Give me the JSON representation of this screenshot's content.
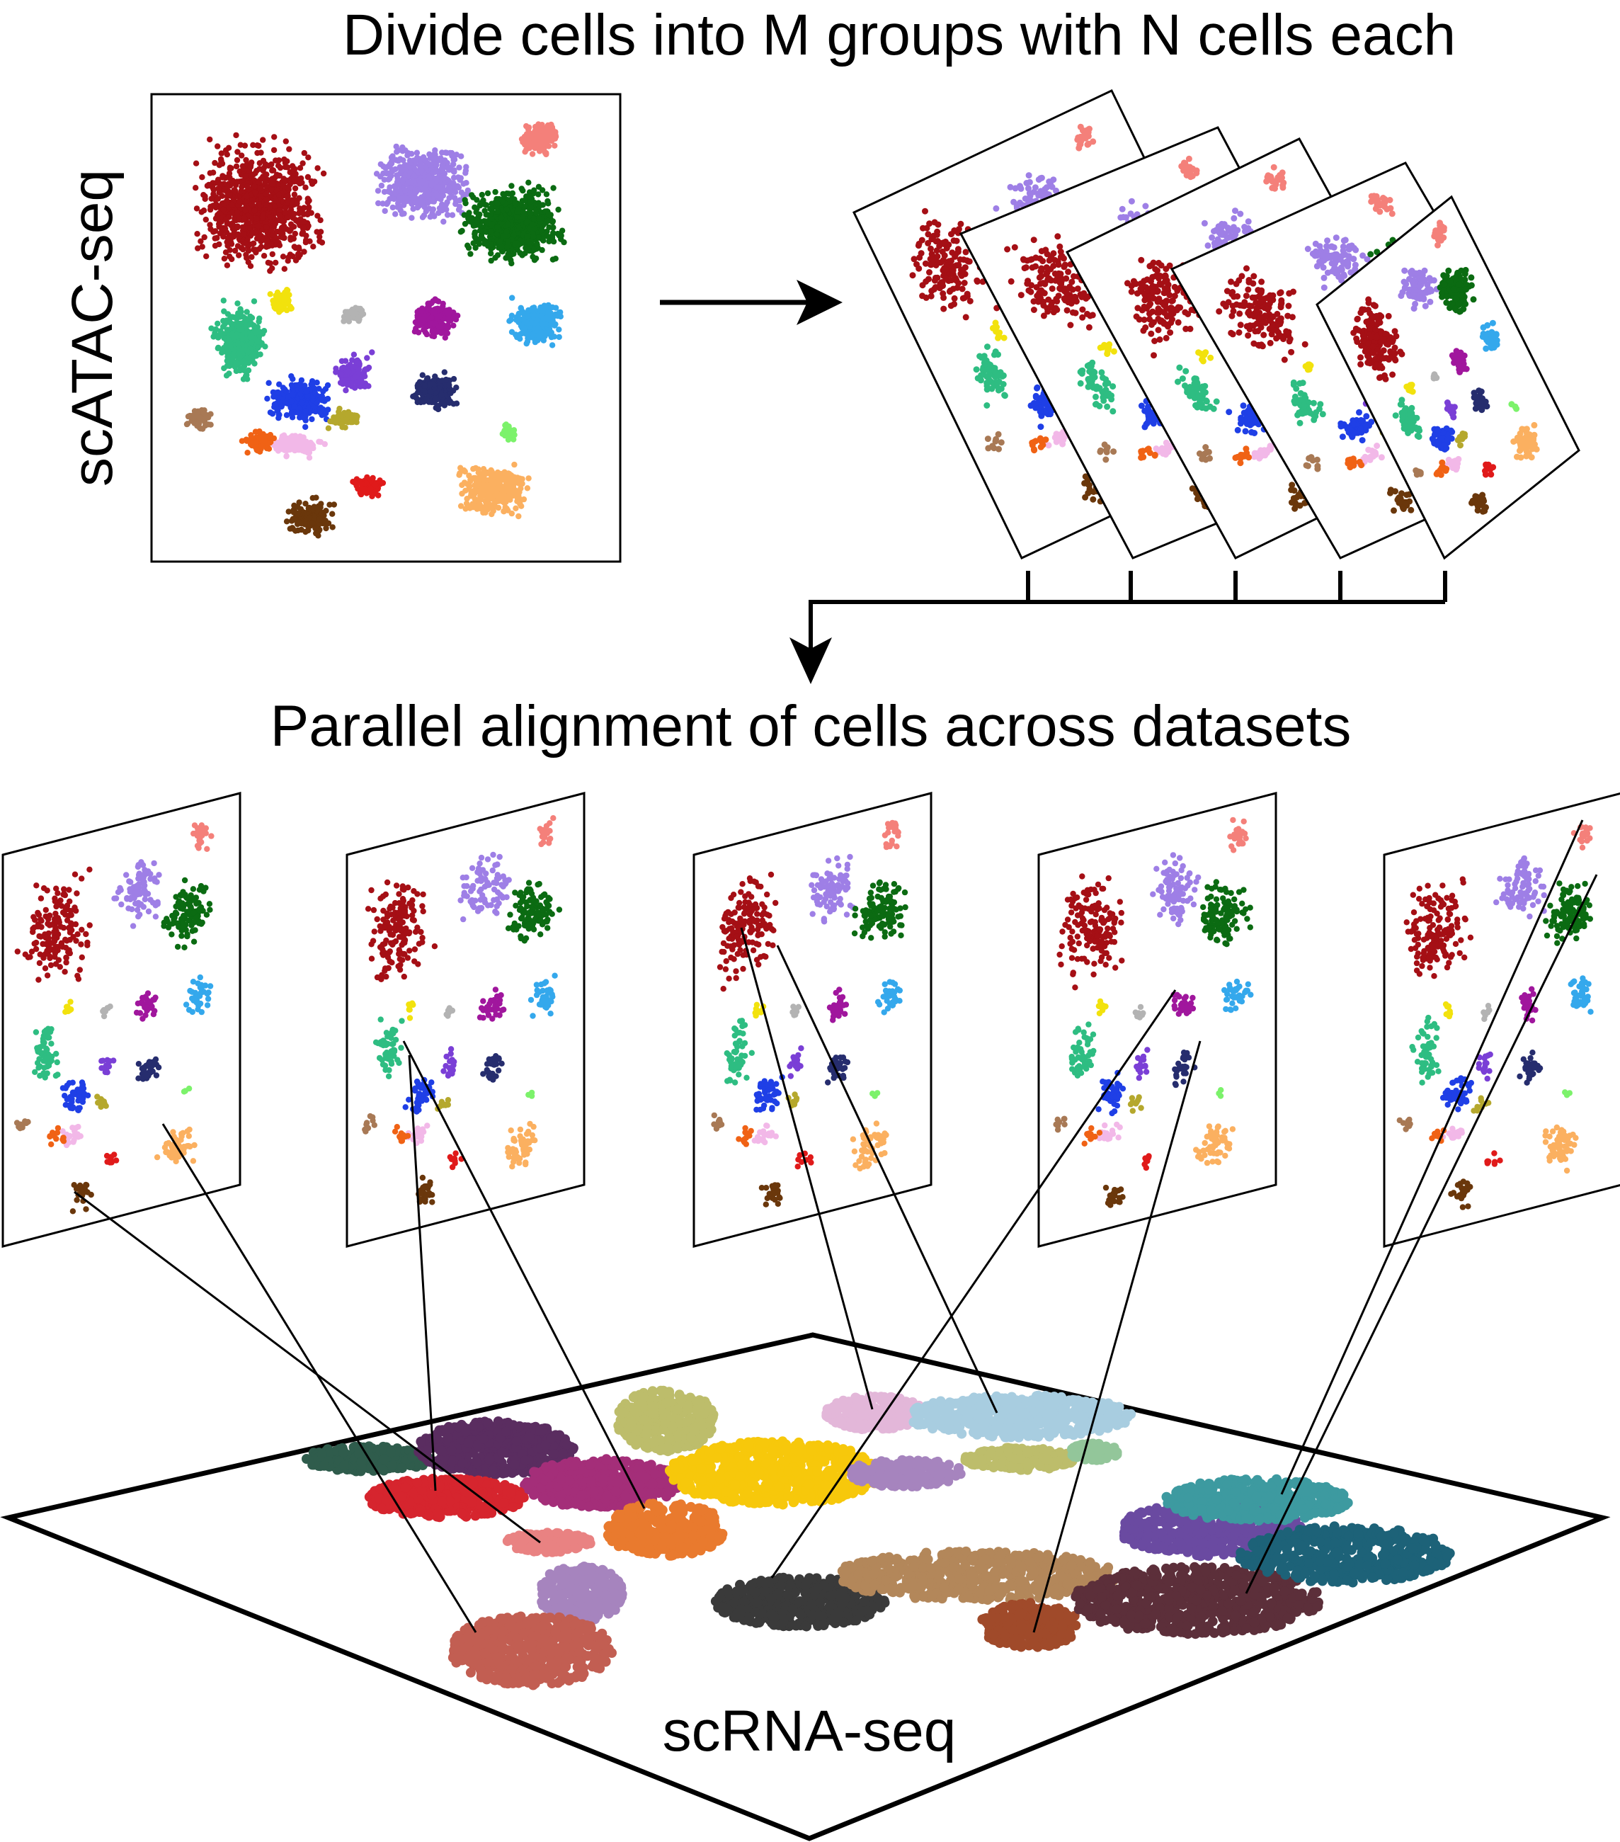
{
  "labels": {
    "top_title": "Divide cells into M groups with N cells each",
    "middle_title": "Parallel alignment of cells across datasets",
    "atac_label": "scATAC-seq",
    "rna_label": "scRNA-seq"
  },
  "atac_clusters": [
    {
      "name": "dark-red",
      "color": "#a50f15"
    },
    {
      "name": "lavender",
      "color": "#9e7fe6"
    },
    {
      "name": "salmon",
      "color": "#f4807a"
    },
    {
      "name": "dark-green",
      "color": "#0b6b12"
    },
    {
      "name": "teal-green",
      "color": "#2ebd82"
    },
    {
      "name": "yellow",
      "color": "#f2e20d"
    },
    {
      "name": "grey",
      "color": "#b3b3b3"
    },
    {
      "name": "magenta",
      "color": "#a0169d"
    },
    {
      "name": "sky-blue",
      "color": "#34a8ec"
    },
    {
      "name": "navy",
      "color": "#262d6e"
    },
    {
      "name": "blue",
      "color": "#1f3fe6"
    },
    {
      "name": "purple",
      "color": "#7a3fd6"
    },
    {
      "name": "olive",
      "color": "#b5a82d"
    },
    {
      "name": "pink",
      "color": "#f2b8e8"
    },
    {
      "name": "tan",
      "color": "#a87955"
    },
    {
      "name": "orange",
      "color": "#f06215"
    },
    {
      "name": "light-orange",
      "color": "#fbb060"
    },
    {
      "name": "brown",
      "color": "#6a370b"
    },
    {
      "name": "red",
      "color": "#e01a1a"
    },
    {
      "name": "lime",
      "color": "#7cf26b"
    }
  ],
  "rna_clusters": [
    {
      "name": "dark-teal",
      "color": "#2f5c4c"
    },
    {
      "name": "dark-purple",
      "color": "#5a2d60"
    },
    {
      "name": "plum",
      "color": "#a42e79"
    },
    {
      "name": "crimson",
      "color": "#d6252e"
    },
    {
      "name": "rose",
      "color": "#e98282"
    },
    {
      "name": "orange",
      "color": "#e97a2e"
    },
    {
      "name": "khaki",
      "color": "#bdbd6b"
    },
    {
      "name": "gold",
      "color": "#f7c80b"
    },
    {
      "name": "light-pink",
      "color": "#e3b7d9"
    },
    {
      "name": "light-blue",
      "color": "#a8cde0"
    },
    {
      "name": "mauve",
      "color": "#a684be"
    },
    {
      "name": "terracotta",
      "color": "#c25e52"
    },
    {
      "name": "charcoal",
      "color": "#3a3a3a"
    },
    {
      "name": "tan",
      "color": "#b3875a"
    },
    {
      "name": "rust",
      "color": "#a04a2a"
    },
    {
      "name": "maroon",
      "color": "#5c2f3a"
    },
    {
      "name": "indigo",
      "color": "#6a4aa1"
    },
    {
      "name": "petrol",
      "color": "#1d6278"
    },
    {
      "name": "aqua",
      "color": "#3d9aa0"
    },
    {
      "name": "sage",
      "color": "#93c69a"
    }
  ]
}
